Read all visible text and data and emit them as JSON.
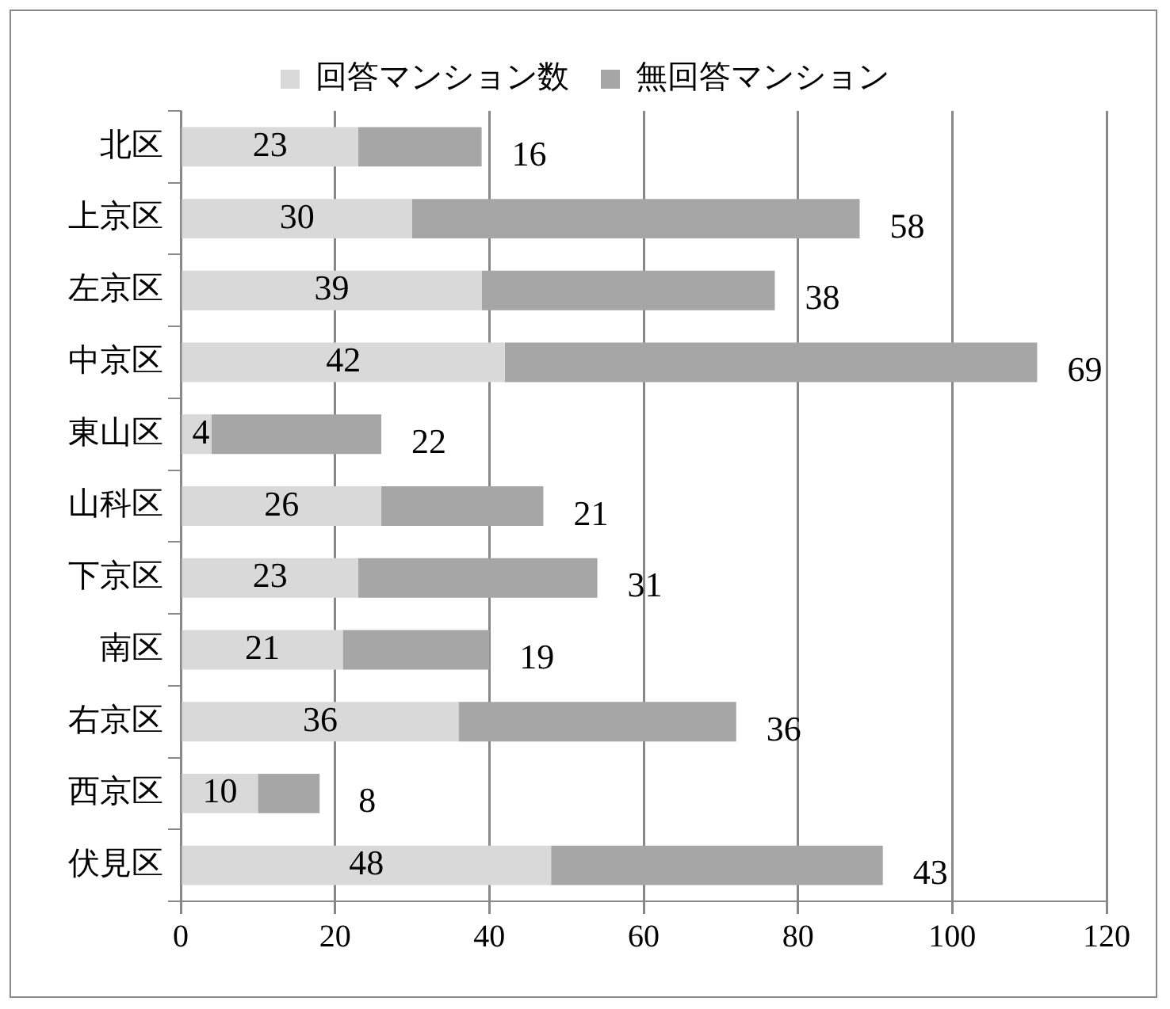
{
  "chart_data": {
    "type": "bar",
    "orientation": "horizontal",
    "stacked": true,
    "categories": [
      "北区",
      "上京区",
      "左京区",
      "中京区",
      "東山区",
      "山科区",
      "下京区",
      "南区",
      "右京区",
      "西京区",
      "伏見区"
    ],
    "series": [
      {
        "name": "回答マンション数",
        "color": "#d9d9d9",
        "values": [
          23,
          30,
          39,
          42,
          4,
          26,
          23,
          21,
          36,
          10,
          48
        ]
      },
      {
        "name": "無回答マンション",
        "color": "#a6a6a6",
        "values": [
          16,
          58,
          38,
          69,
          22,
          21,
          31,
          19,
          36,
          8,
          43
        ]
      }
    ],
    "xlim": [
      0,
      120
    ],
    "xticks": [
      0,
      20,
      40,
      60,
      80,
      100,
      120
    ],
    "grid": "x",
    "legend": "top",
    "data_labels": true
  }
}
